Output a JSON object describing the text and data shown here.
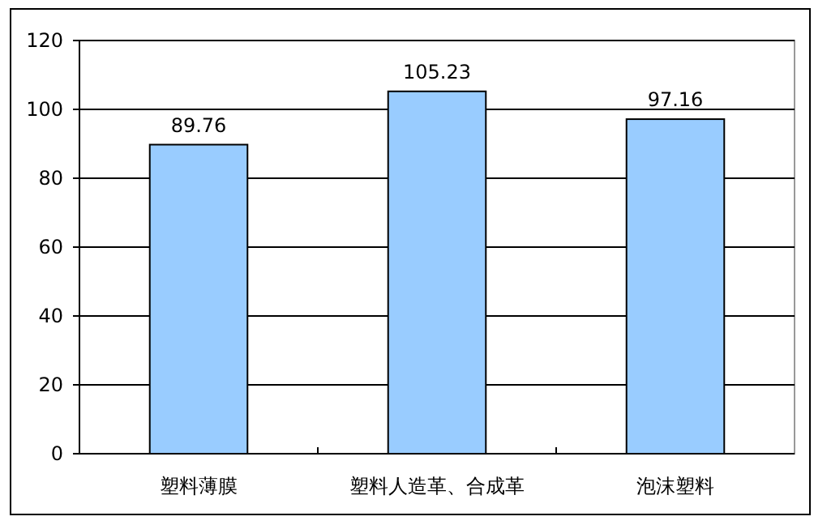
{
  "chart_data": {
    "type": "bar",
    "categories": [
      "塑料薄膜",
      "塑料人造革、合成革",
      "泡沫塑料"
    ],
    "values": [
      89.76,
      105.23,
      97.16
    ],
    "color": "#99ccff",
    "ylim": [
      0,
      120
    ],
    "yticks": [
      0,
      20,
      40,
      60,
      80,
      100,
      120
    ],
    "grid": "y",
    "data_labels": true
  }
}
